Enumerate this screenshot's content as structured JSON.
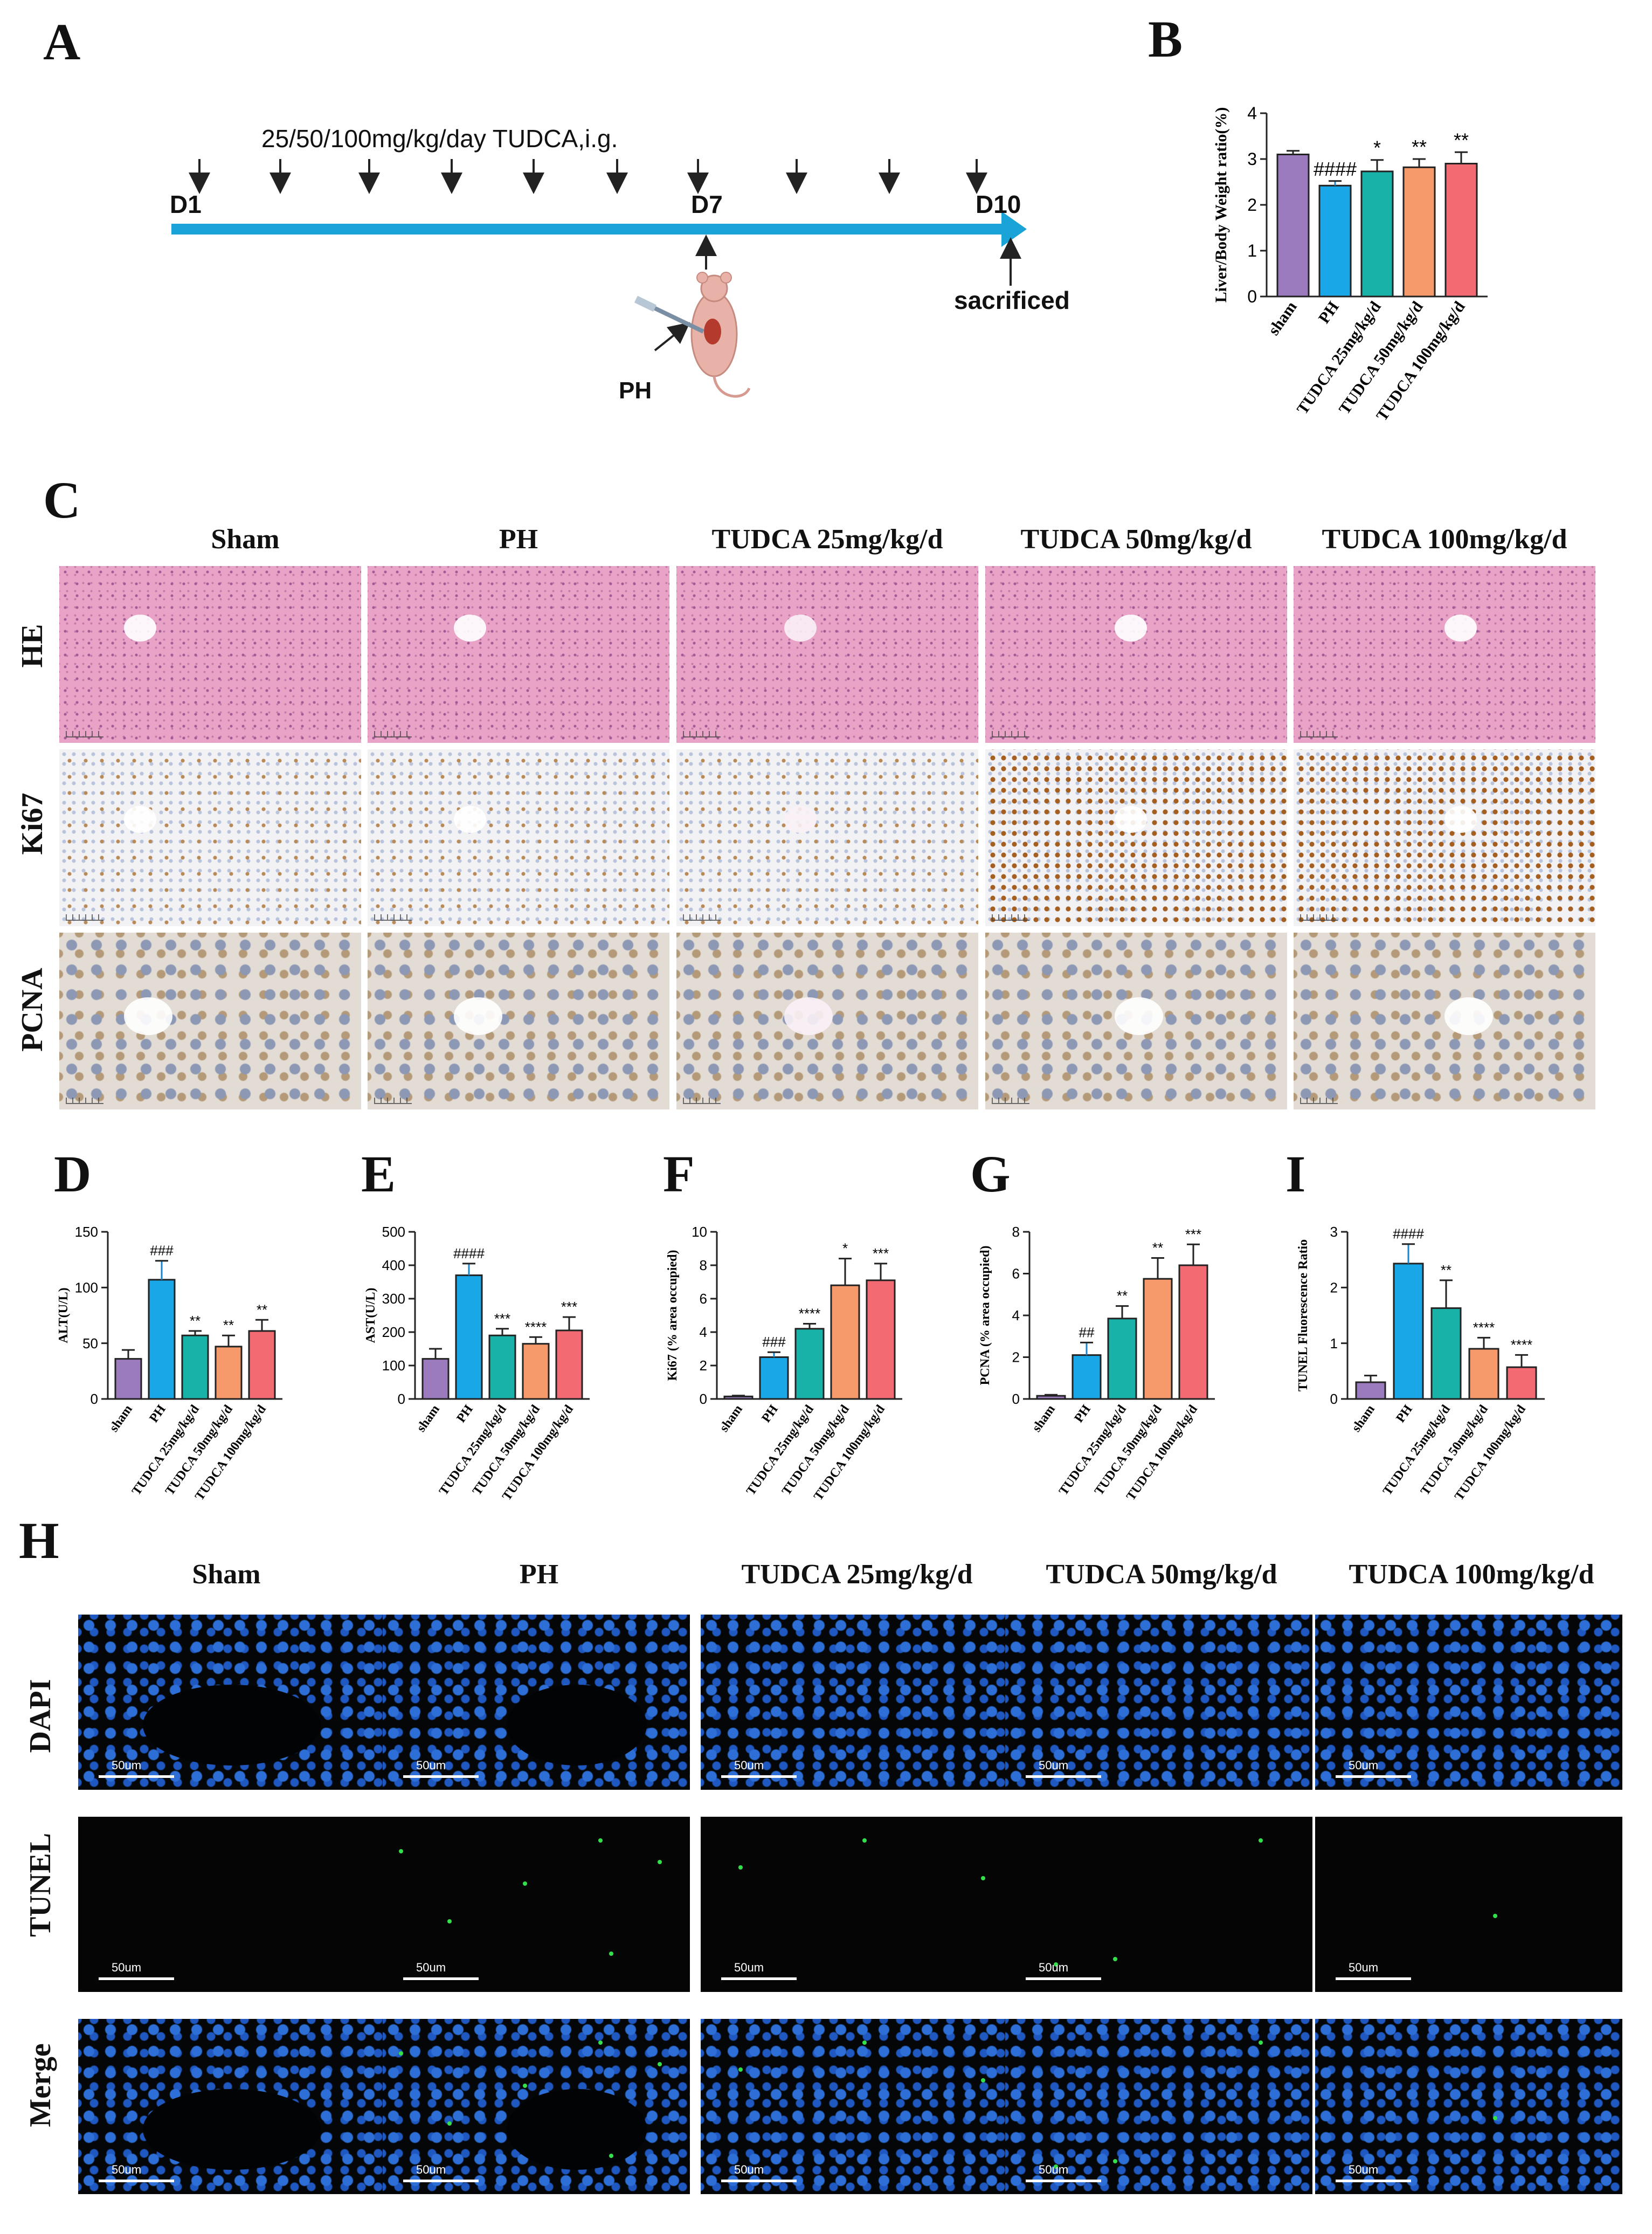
{
  "panel_labels": {
    "A": "A",
    "B": "B",
    "C": "C",
    "D": "D",
    "E": "E",
    "F": "F",
    "G": "G",
    "H": "H",
    "I": "I"
  },
  "timeline": {
    "dose_text": "25/50/100mg/kg/day TUDCA,i.g.",
    "day1": "D1",
    "day7": "D7",
    "day10": "D10",
    "ph": "PH",
    "sacrificed": "sacrificed"
  },
  "columns": [
    "Sham",
    "PH",
    "TUDCA 25mg/kg/d",
    "TUDCA 50mg/kg/d",
    "TUDCA 100mg/kg/d"
  ],
  "panel_c_rows": [
    "HE",
    "Ki67",
    "PCNA"
  ],
  "panel_h_rows": [
    "DAPI",
    "TUNEL",
    "Merge"
  ],
  "scale_label": "50um",
  "colors": {
    "sham": "#9b7bbd",
    "ph": "#1aa7e8",
    "t25": "#19b2a8",
    "t50": "#f79a6b",
    "t100": "#f26b72",
    "axis": "#222222",
    "arrow": "#1aa3d6"
  },
  "chart_data": [
    {
      "id": "B",
      "type": "bar",
      "title": "",
      "xlabel": "",
      "ylabel": "Liver/Body Weight ratio(%)",
      "categories": [
        "sham",
        "PH",
        "TUDCA 25mg/kg/d",
        "TUDCA 50mg/kg/d",
        "TUDCA 100mg/kg/d"
      ],
      "values": [
        3.1,
        2.42,
        2.73,
        2.82,
        2.9
      ],
      "errors": [
        0.08,
        0.1,
        0.25,
        0.18,
        0.25
      ],
      "annotations": [
        "",
        "####",
        "*",
        "**",
        "**"
      ],
      "ylim": [
        0,
        4
      ],
      "yticks": [
        0,
        1,
        2,
        3,
        4
      ]
    },
    {
      "id": "D",
      "type": "bar",
      "title": "",
      "xlabel": "",
      "ylabel": "ALT(U/L)",
      "categories": [
        "sham",
        "PH",
        "TUDCA 25mg/kg/d",
        "TUDCA 50mg/kg/d",
        "TUDCA 100mg/kg/d"
      ],
      "values": [
        36,
        107,
        57,
        47,
        61
      ],
      "errors": [
        8,
        17,
        4,
        10,
        10
      ],
      "annotations": [
        "",
        "###",
        "**",
        "**",
        "**"
      ],
      "ylim": [
        0,
        150
      ],
      "yticks": [
        0,
        50,
        100,
        150
      ]
    },
    {
      "id": "E",
      "type": "bar",
      "title": "",
      "xlabel": "",
      "ylabel": "AST(U/L)",
      "categories": [
        "sham",
        "PH",
        "TUDCA 25mg/kg/d",
        "TUDCA 50mg/kg/d",
        "TUDCA 100mg/kg/d"
      ],
      "values": [
        120,
        370,
        190,
        165,
        205
      ],
      "errors": [
        30,
        35,
        20,
        20,
        40
      ],
      "annotations": [
        "",
        "####",
        "***",
        "****",
        "***"
      ],
      "ylim": [
        0,
        500
      ],
      "yticks": [
        0,
        100,
        200,
        300,
        400,
        500
      ]
    },
    {
      "id": "F",
      "type": "bar",
      "title": "",
      "xlabel": "",
      "ylabel": "Ki67 (% area occupied)",
      "categories": [
        "sham",
        "PH",
        "TUDCA 25mg/kg/d",
        "TUDCA 50mg/kg/d",
        "TUDCA 100mg/kg/d"
      ],
      "values": [
        0.15,
        2.5,
        4.2,
        6.8,
        7.1
      ],
      "errors": [
        0.05,
        0.3,
        0.3,
        1.6,
        1.0
      ],
      "annotations": [
        "",
        "###",
        "****",
        "*",
        "***"
      ],
      "ylim": [
        0,
        10
      ],
      "yticks": [
        0,
        2,
        4,
        6,
        8,
        10
      ]
    },
    {
      "id": "G",
      "type": "bar",
      "title": "",
      "xlabel": "",
      "ylabel": "PCNA (% area occupied)",
      "categories": [
        "sham",
        "PH",
        "TUDCA 25mg/kg/d",
        "TUDCA 50mg/kg/d",
        "TUDCA 100mg/kg/d"
      ],
      "values": [
        0.15,
        2.1,
        3.85,
        5.75,
        6.4
      ],
      "errors": [
        0.05,
        0.6,
        0.6,
        1.0,
        1.0
      ],
      "annotations": [
        "",
        "##",
        "**",
        "**",
        "***"
      ],
      "ylim": [
        0,
        8
      ],
      "yticks": [
        0,
        2,
        4,
        6,
        8
      ]
    },
    {
      "id": "I",
      "type": "bar",
      "title": "",
      "xlabel": "",
      "ylabel": "TUNEL Fluorescence Ratio",
      "categories": [
        "sham",
        "PH",
        "TUDCA 25mg/kg/d",
        "TUDCA 50mg/kg/d",
        "TUDCA 100mg/kg/d"
      ],
      "values": [
        0.3,
        2.43,
        1.63,
        0.9,
        0.57
      ],
      "errors": [
        0.12,
        0.35,
        0.5,
        0.2,
        0.22
      ],
      "annotations": [
        "",
        "####",
        "**",
        "****",
        "****"
      ],
      "ylim": [
        0,
        3
      ],
      "yticks": [
        0,
        1,
        2,
        3
      ]
    }
  ]
}
